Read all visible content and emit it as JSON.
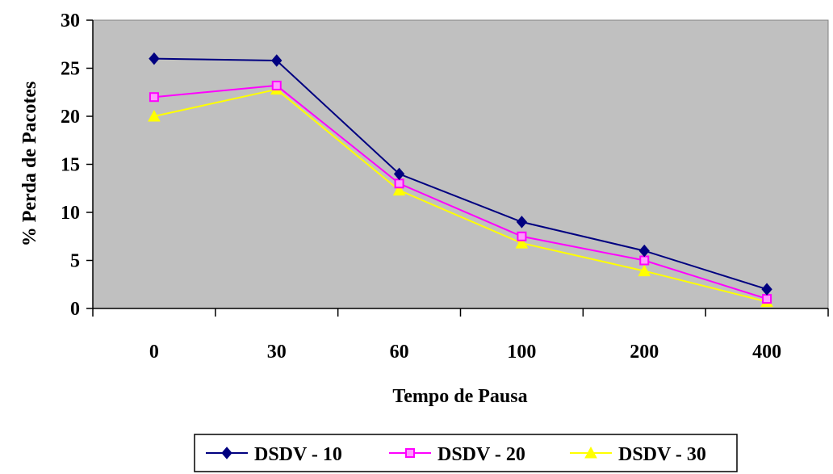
{
  "chart_data": {
    "type": "line",
    "title": "",
    "xlabel": "Tempo de Pausa",
    "ylabel": "% Perda de Pacotes",
    "categories": [
      "0",
      "30",
      "60",
      "100",
      "200",
      "400"
    ],
    "ylim": [
      0,
      30
    ],
    "yticks": [
      "0",
      "5",
      "10",
      "15",
      "20",
      "25",
      "30"
    ],
    "grid": false,
    "plot_background": "#C0C0C0",
    "legend_position": "bottom",
    "series": [
      {
        "name": "DSDV - 10",
        "values": [
          26,
          25.8,
          14,
          9,
          6,
          2
        ],
        "color": "#000080",
        "marker": "diamond"
      },
      {
        "name": "DSDV - 20",
        "values": [
          22,
          23.2,
          13,
          7.5,
          5,
          1
        ],
        "color": "#FF00FF",
        "marker": "square"
      },
      {
        "name": "DSDV - 30",
        "values": [
          20,
          22.8,
          12.3,
          6.8,
          3.9,
          0.7
        ],
        "color": "#FFFF00",
        "marker": "triangle"
      }
    ]
  }
}
